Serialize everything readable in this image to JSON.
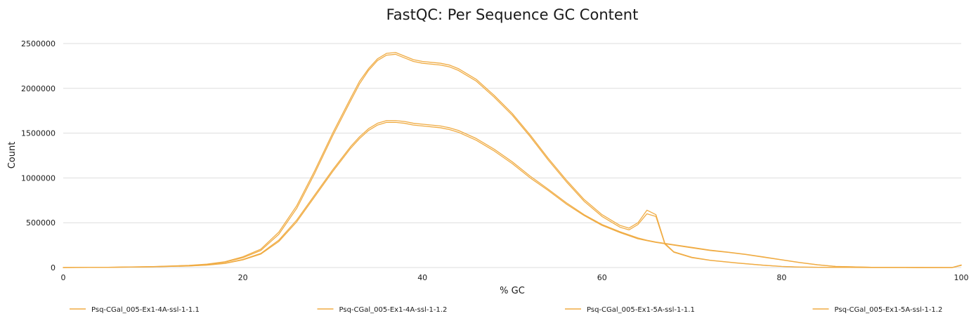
{
  "chart_data": {
    "type": "line",
    "title": "FastQC: Per Sequence GC Content",
    "xlabel": "% GC",
    "ylabel": "Count",
    "xlim": [
      0,
      100
    ],
    "ylim": [
      0,
      2500000
    ],
    "x_ticks": [
      0,
      20,
      40,
      60,
      80,
      100
    ],
    "y_ticks": [
      0,
      500000,
      1000000,
      1500000,
      2000000,
      2500000
    ],
    "grid": true,
    "legend_position": "bottom",
    "line_color": "#F0AC44",
    "series": [
      {
        "name": "Psq-CGal_005-Ex1-4A-ssl-1-1.1",
        "x": [
          0,
          5,
          10,
          14,
          16,
          18,
          20,
          22,
          24,
          26,
          28,
          30,
          32,
          33,
          34,
          35,
          36,
          37,
          38,
          39,
          40,
          42,
          43,
          44,
          46,
          48,
          50,
          52,
          54,
          56,
          58,
          60,
          62,
          63,
          64,
          65,
          66,
          67,
          68,
          70,
          72,
          75,
          78,
          80,
          82,
          85,
          90,
          95,
          99,
          100
        ],
        "y": [
          0,
          3000,
          10000,
          22000,
          35000,
          60000,
          110000,
          190000,
          370000,
          660000,
          1050000,
          1470000,
          1860000,
          2050000,
          2200000,
          2310000,
          2370000,
          2380000,
          2340000,
          2300000,
          2280000,
          2260000,
          2240000,
          2200000,
          2080000,
          1900000,
          1700000,
          1460000,
          1200000,
          960000,
          740000,
          570000,
          450000,
          420000,
          480000,
          600000,
          570000,
          260000,
          170000,
          110000,
          80000,
          50000,
          25000,
          12000,
          5000,
          2000,
          500,
          100,
          20,
          25000
        ]
      },
      {
        "name": "Psq-CGal_005-Ex1-4A-ssl-1-1.2",
        "x": [
          0,
          5,
          10,
          14,
          16,
          18,
          20,
          22,
          24,
          26,
          28,
          30,
          32,
          33,
          34,
          35,
          36,
          37,
          38,
          39,
          40,
          42,
          43,
          44,
          46,
          48,
          50,
          52,
          54,
          56,
          58,
          60,
          62,
          63,
          64,
          65,
          66,
          67,
          68,
          70,
          72,
          75,
          78,
          80,
          82,
          85,
          90,
          95,
          99,
          100
        ],
        "y": [
          0,
          3000,
          11000,
          24000,
          38000,
          65000,
          120000,
          205000,
          395000,
          690000,
          1080000,
          1500000,
          1890000,
          2080000,
          2220000,
          2330000,
          2390000,
          2400000,
          2360000,
          2320000,
          2300000,
          2280000,
          2260000,
          2220000,
          2100000,
          1920000,
          1720000,
          1480000,
          1220000,
          980000,
          760000,
          590000,
          470000,
          440000,
          500000,
          640000,
          590000,
          270000,
          175000,
          115000,
          82000,
          52000,
          26000,
          13000,
          5500,
          2200,
          600,
          120,
          25,
          28000
        ]
      },
      {
        "name": "Psq-CGal_005-Ex1-5A-ssl-1-1.1",
        "x": [
          0,
          5,
          10,
          14,
          16,
          18,
          20,
          22,
          24,
          26,
          28,
          30,
          32,
          33,
          34,
          35,
          36,
          37,
          38,
          39,
          40,
          42,
          43,
          44,
          46,
          48,
          50,
          52,
          54,
          56,
          58,
          60,
          62,
          64,
          65,
          66,
          68,
          70,
          72,
          74,
          76,
          78,
          80,
          82,
          84,
          86,
          90,
          95,
          99,
          100
        ],
        "y": [
          0,
          2000,
          8000,
          17000,
          27000,
          45000,
          85000,
          150000,
          290000,
          510000,
          790000,
          1070000,
          1330000,
          1440000,
          1530000,
          1590000,
          1620000,
          1620000,
          1610000,
          1590000,
          1580000,
          1560000,
          1540000,
          1510000,
          1420000,
          1300000,
          1160000,
          1000000,
          860000,
          710000,
          580000,
          470000,
          390000,
          320000,
          300000,
          280000,
          250000,
          220000,
          190000,
          170000,
          145000,
          115000,
          85000,
          55000,
          30000,
          12000,
          3000,
          600,
          100,
          25000
        ]
      },
      {
        "name": "Psq-CGal_005-Ex1-5A-ssl-1-1.2",
        "x": [
          0,
          5,
          10,
          14,
          16,
          18,
          20,
          22,
          24,
          26,
          28,
          30,
          32,
          33,
          34,
          35,
          36,
          37,
          38,
          39,
          40,
          42,
          43,
          44,
          46,
          48,
          50,
          52,
          54,
          56,
          58,
          60,
          62,
          64,
          65,
          66,
          68,
          70,
          72,
          74,
          76,
          78,
          80,
          82,
          84,
          86,
          90,
          95,
          99,
          100
        ],
        "y": [
          0,
          2000,
          8500,
          18000,
          29000,
          48000,
          90000,
          158000,
          305000,
          530000,
          810000,
          1090000,
          1350000,
          1460000,
          1550000,
          1610000,
          1640000,
          1640000,
          1630000,
          1610000,
          1600000,
          1580000,
          1560000,
          1530000,
          1440000,
          1320000,
          1180000,
          1020000,
          875000,
          725000,
          590000,
          480000,
          400000,
          330000,
          305000,
          285000,
          255000,
          225000,
          195000,
          172000,
          148000,
          118000,
          87000,
          57000,
          31000,
          13000,
          3200,
          650,
          110,
          27000
        ]
      }
    ]
  }
}
